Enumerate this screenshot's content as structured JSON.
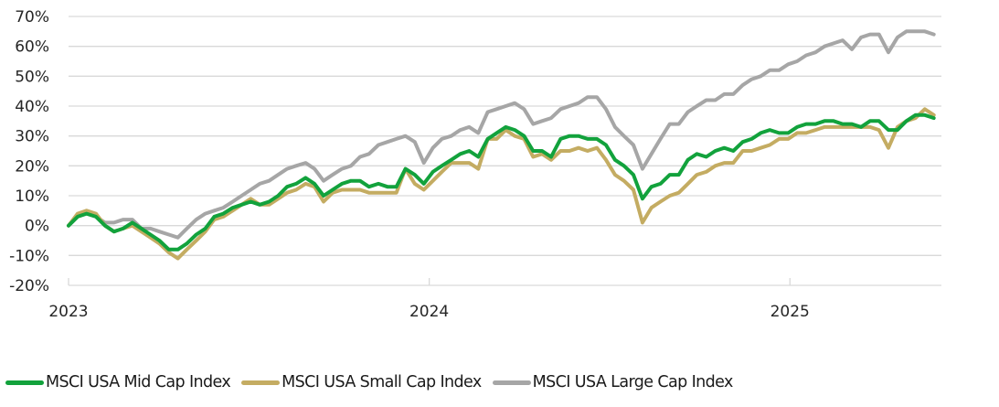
{
  "chart_data": {
    "type": "line",
    "title": "",
    "xlabel": "",
    "ylabel": "",
    "ylim": [
      -20,
      70
    ],
    "yticks": [
      70,
      60,
      50,
      40,
      30,
      20,
      10,
      0,
      -10,
      -20
    ],
    "ytick_labels": [
      "70%",
      "60%",
      "50%",
      "40%",
      "30%",
      "20%",
      "10%",
      "0%",
      "-10%",
      "-20%"
    ],
    "xlim_years": [
      2023.0,
      2025.42
    ],
    "xticks": [
      2023,
      2024,
      2025
    ],
    "xtick_labels": [
      "2023",
      "2024",
      "2025"
    ],
    "grid": "horizontal",
    "legend_position": "bottom",
    "x": [
      2023.0,
      2023.025,
      2023.05,
      2023.076,
      2023.101,
      2023.126,
      2023.151,
      2023.177,
      2023.202,
      2023.227,
      2023.252,
      2023.278,
      2023.303,
      2023.328,
      2023.354,
      2023.379,
      2023.404,
      2023.429,
      2023.455,
      2023.48,
      2023.505,
      2023.53,
      2023.556,
      2023.581,
      2023.606,
      2023.631,
      2023.657,
      2023.682,
      2023.707,
      2023.732,
      2023.758,
      2023.783,
      2023.808,
      2023.833,
      2023.859,
      2023.884,
      2023.909,
      2023.934,
      2023.96,
      2023.985,
      2024.01,
      2024.035,
      2024.061,
      2024.086,
      2024.111,
      2024.136,
      2024.162,
      2024.187,
      2024.212,
      2024.237,
      2024.263,
      2024.288,
      2024.313,
      2024.338,
      2024.364,
      2024.389,
      2024.414,
      2024.439,
      2024.465,
      2024.49,
      2024.515,
      2024.54,
      2024.566,
      2024.591,
      2024.616,
      2024.641,
      2024.667,
      2024.692,
      2024.717,
      2024.742,
      2024.768,
      2024.793,
      2024.818,
      2024.843,
      2024.869,
      2024.894,
      2024.919,
      2024.944,
      2024.97,
      2024.995,
      2025.02,
      2025.045,
      2025.071,
      2025.096,
      2025.121,
      2025.146,
      2025.172,
      2025.197,
      2025.222,
      2025.247,
      2025.273,
      2025.298,
      2025.323,
      2025.348,
      2025.374,
      2025.399
    ],
    "series": [
      {
        "name": "MSCI USA Mid Cap Index",
        "color": "#12a23c",
        "values": [
          0,
          3,
          4,
          3,
          0,
          -2,
          -1,
          1,
          -1,
          -3,
          -5,
          -8,
          -8,
          -6,
          -3,
          -1,
          3,
          4,
          6,
          7,
          8,
          7,
          8,
          10,
          13,
          14,
          16,
          14,
          10,
          12,
          14,
          15,
          15,
          13,
          14,
          13,
          13,
          19,
          17,
          14,
          18,
          20,
          22,
          24,
          25,
          23,
          29,
          31,
          33,
          32,
          30,
          25,
          25,
          23,
          29,
          30,
          30,
          29,
          29,
          27,
          22,
          20,
          17,
          9,
          13,
          14,
          17,
          17,
          22,
          24,
          23,
          25,
          26,
          25,
          28,
          29,
          31,
          32,
          31,
          31,
          33,
          34,
          34,
          35,
          35,
          34,
          34,
          33,
          35,
          35,
          32,
          32,
          35,
          37,
          37,
          36
        ]
      },
      {
        "name": "MSCI USA Small Cap Index",
        "color": "#c4ac62",
        "values": [
          0,
          4,
          5,
          4,
          0,
          -2,
          -1,
          0,
          -2,
          -4,
          -6,
          -9,
          -11,
          -8,
          -5,
          -2,
          2,
          3,
          5,
          7,
          9,
          7,
          7,
          9,
          11,
          12,
          14,
          13,
          8,
          11,
          12,
          12,
          12,
          11,
          11,
          11,
          11,
          19,
          14,
          12,
          15,
          18,
          21,
          21,
          21,
          19,
          29,
          29,
          32,
          30,
          29,
          23,
          24,
          22,
          25,
          25,
          26,
          25,
          26,
          22,
          17,
          15,
          12,
          1,
          6,
          8,
          10,
          11,
          14,
          17,
          18,
          20,
          21,
          21,
          25,
          25,
          26,
          27,
          29,
          29,
          31,
          31,
          32,
          33,
          33,
          33,
          33,
          33,
          33,
          32,
          26,
          33,
          35,
          36,
          39,
          37
        ]
      },
      {
        "name": "MSCI USA Large Cap Index",
        "color": "#a6a6a6",
        "values": [
          0,
          3,
          4,
          3,
          1,
          1,
          2,
          2,
          -1,
          -1,
          -2,
          -3,
          -4,
          -1,
          2,
          4,
          5,
          6,
          8,
          10,
          12,
          14,
          15,
          17,
          19,
          20,
          21,
          19,
          15,
          17,
          19,
          20,
          23,
          24,
          27,
          28,
          29,
          30,
          28,
          21,
          26,
          29,
          30,
          32,
          33,
          31,
          38,
          39,
          40,
          41,
          39,
          34,
          35,
          36,
          39,
          40,
          41,
          43,
          43,
          39,
          33,
          30,
          27,
          19,
          24,
          29,
          34,
          34,
          38,
          40,
          42,
          42,
          44,
          44,
          47,
          49,
          50,
          52,
          52,
          54,
          55,
          57,
          58,
          60,
          61,
          62,
          59,
          63,
          64,
          64,
          58,
          63,
          65,
          65,
          65,
          64
        ]
      }
    ]
  },
  "legend": {
    "items": [
      {
        "label": "MSCI USA Mid Cap Index",
        "color": "#12a23c"
      },
      {
        "label": "MSCI USA Small Cap Index",
        "color": "#c4ac62"
      },
      {
        "label": "MSCI USA Large Cap Index",
        "color": "#a6a6a6"
      }
    ]
  },
  "style": {
    "grid_color": "#d9d9d9"
  }
}
